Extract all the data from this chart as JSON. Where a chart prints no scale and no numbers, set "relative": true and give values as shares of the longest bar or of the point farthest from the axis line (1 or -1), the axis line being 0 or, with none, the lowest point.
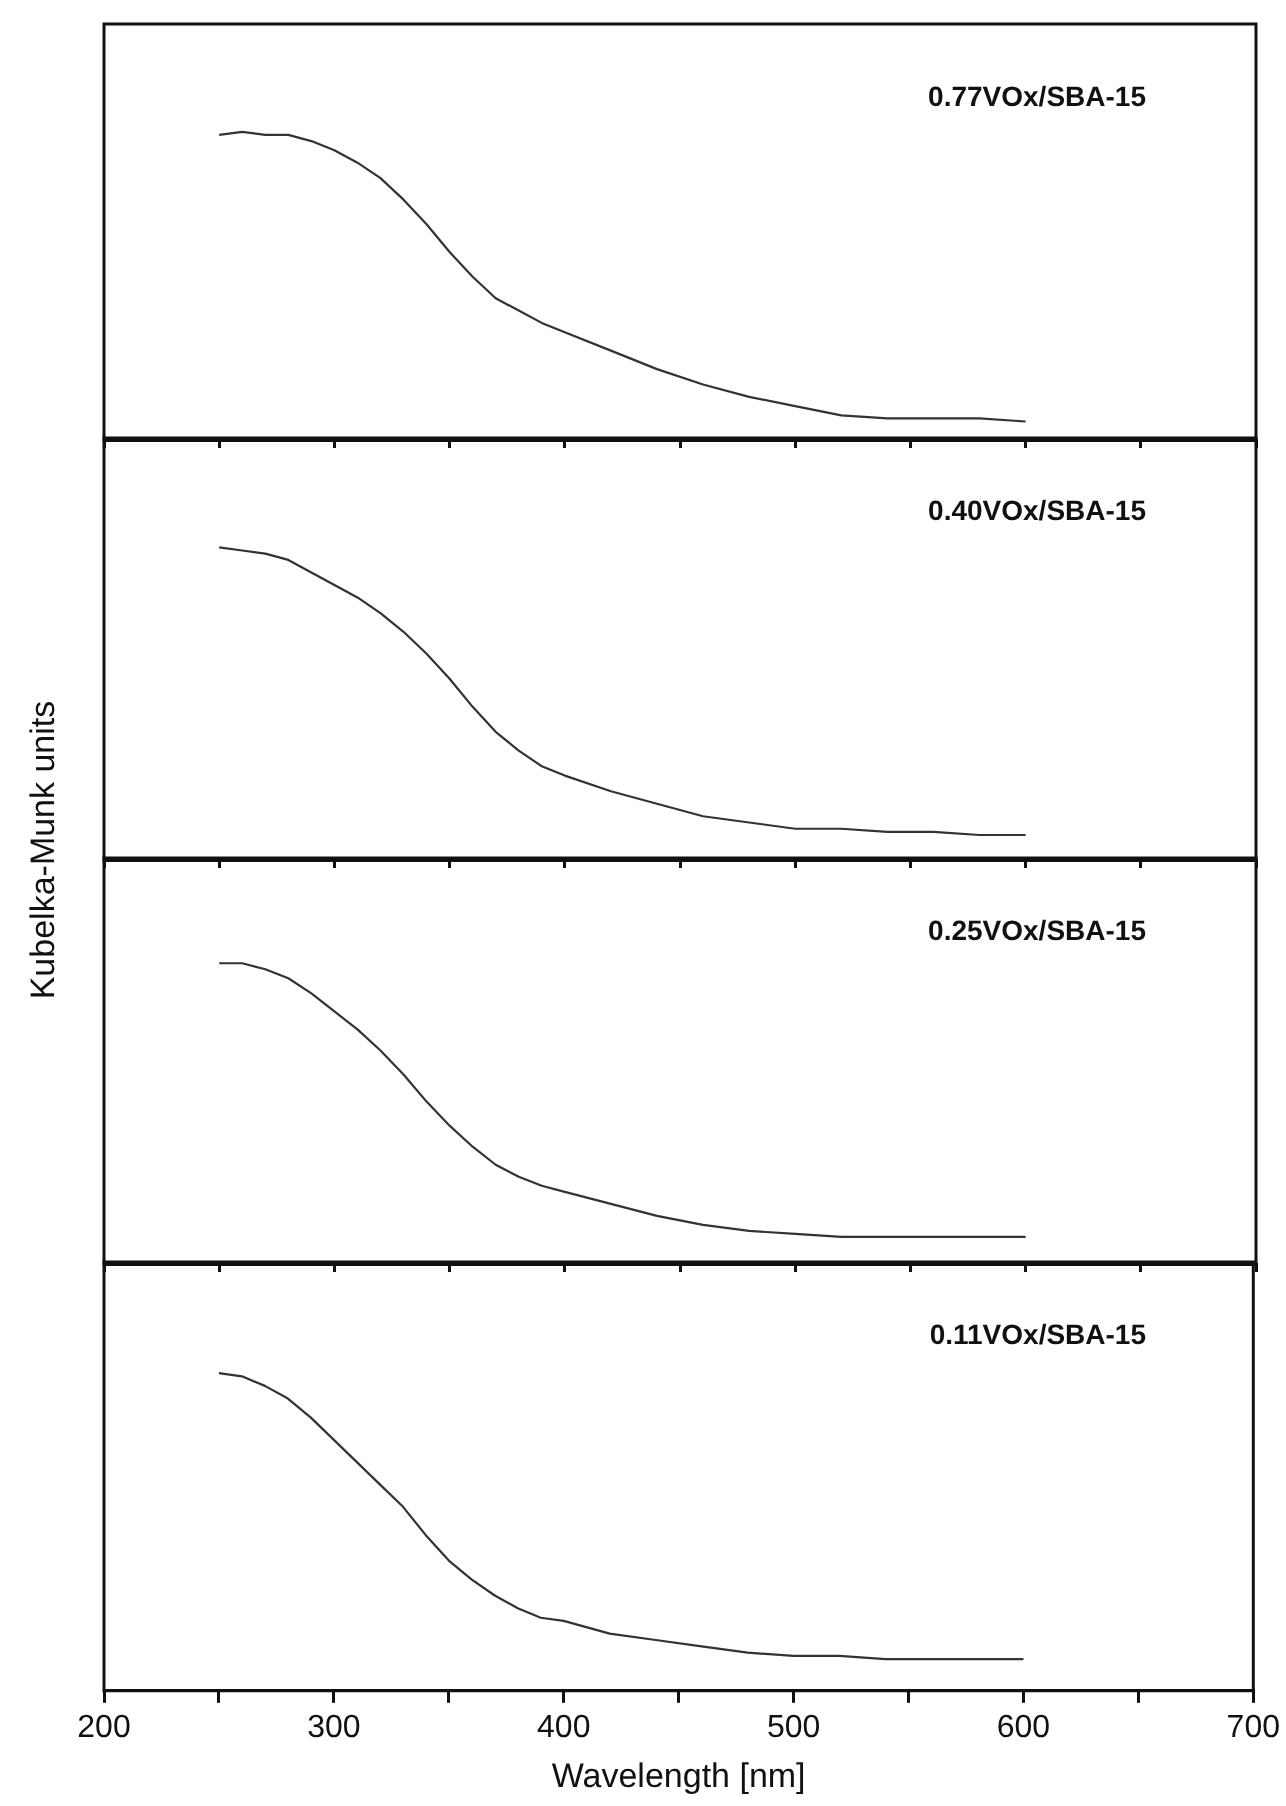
{
  "chart_data": [
    {
      "type": "line",
      "relative": true,
      "xlim": [
        200,
        700
      ],
      "tick_labels": false,
      "xticks": [
        200,
        {
          "value": 250,
          "label": null
        },
        300,
        {
          "value": 350,
          "label": null
        },
        400,
        {
          "value": 450,
          "label": null
        },
        500,
        {
          "value": 550,
          "label": null
        },
        600,
        {
          "value": 650,
          "label": null
        },
        700
      ],
      "series": [
        {
          "name": "0.77VOx/SBA-15",
          "color": "#333333",
          "x": [
            250,
            260,
            270,
            280,
            290,
            300,
            310,
            320,
            330,
            340,
            350,
            360,
            370,
            380,
            390,
            400,
            420,
            440,
            460,
            480,
            500,
            520,
            540,
            560,
            580,
            600
          ],
          "values": [
            0.99,
            1.0,
            0.99,
            0.99,
            0.97,
            0.94,
            0.9,
            0.85,
            0.78,
            0.7,
            0.61,
            0.53,
            0.46,
            0.42,
            0.38,
            0.35,
            0.29,
            0.23,
            0.18,
            0.14,
            0.11,
            0.08,
            0.07,
            0.07,
            0.07,
            0.06
          ]
        }
      ]
    },
    {
      "type": "line",
      "relative": true,
      "xlim": [
        200,
        700
      ],
      "tick_labels": false,
      "ylabel": "Kubelka-Munk units",
      "xticks": [
        200,
        {
          "value": 250,
          "label": null
        },
        300,
        {
          "value": 350,
          "label": null
        },
        400,
        {
          "value": 450,
          "label": null
        },
        500,
        {
          "value": 550,
          "label": null
        },
        600,
        {
          "value": 650,
          "label": null
        },
        700
      ],
      "series": [
        {
          "name": "0.40VOx/SBA-15",
          "color": "#333333",
          "x": [
            250,
            260,
            270,
            280,
            290,
            300,
            310,
            320,
            330,
            340,
            350,
            360,
            370,
            380,
            390,
            400,
            420,
            440,
            460,
            480,
            500,
            520,
            540,
            560,
            580,
            600
          ],
          "values": [
            1.0,
            0.99,
            0.98,
            0.96,
            0.92,
            0.88,
            0.84,
            0.79,
            0.73,
            0.66,
            0.58,
            0.49,
            0.41,
            0.35,
            0.3,
            0.27,
            0.22,
            0.18,
            0.14,
            0.12,
            0.1,
            0.1,
            0.09,
            0.09,
            0.08,
            0.08
          ]
        }
      ]
    },
    {
      "type": "line",
      "relative": true,
      "xlim": [
        200,
        700
      ],
      "tick_labels": false,
      "xticks": [
        200,
        {
          "value": 250,
          "label": null
        },
        300,
        {
          "value": 350,
          "label": null
        },
        400,
        {
          "value": 450,
          "label": null
        },
        500,
        {
          "value": 550,
          "label": null
        },
        600,
        {
          "value": 650,
          "label": null
        },
        700
      ],
      "series": [
        {
          "name": "0.25VOx/SBA-15",
          "color": "#333333",
          "x": [
            250,
            260,
            270,
            280,
            290,
            300,
            310,
            320,
            330,
            340,
            350,
            360,
            370,
            380,
            390,
            400,
            420,
            440,
            460,
            480,
            500,
            520,
            540,
            560,
            580,
            600
          ],
          "values": [
            1.0,
            1.0,
            0.98,
            0.95,
            0.9,
            0.84,
            0.78,
            0.71,
            0.63,
            0.54,
            0.46,
            0.39,
            0.33,
            0.29,
            0.26,
            0.24,
            0.2,
            0.16,
            0.13,
            0.11,
            0.1,
            0.09,
            0.09,
            0.09,
            0.09,
            0.09
          ]
        }
      ]
    },
    {
      "type": "line",
      "relative": true,
      "xlabel": "Wavelength [nm]",
      "xlim": [
        200,
        700
      ],
      "tick_labels": "x",
      "xticks": [
        200,
        {
          "value": 250,
          "label": null
        },
        300,
        {
          "value": 350,
          "label": null
        },
        400,
        {
          "value": 450,
          "label": null
        },
        500,
        {
          "value": 550,
          "label": null
        },
        600,
        {
          "value": 650,
          "label": null
        },
        700
      ],
      "series": [
        {
          "name": "0.11VOx/SBA-15",
          "color": "#333333",
          "x": [
            250,
            260,
            270,
            280,
            290,
            300,
            310,
            320,
            330,
            340,
            350,
            360,
            370,
            380,
            390,
            400,
            420,
            440,
            460,
            480,
            500,
            520,
            540,
            560,
            580,
            600
          ],
          "values": [
            1.0,
            0.99,
            0.96,
            0.92,
            0.86,
            0.79,
            0.72,
            0.65,
            0.58,
            0.49,
            0.41,
            0.35,
            0.3,
            0.26,
            0.23,
            0.22,
            0.18,
            0.16,
            0.14,
            0.12,
            0.11,
            0.11,
            0.1,
            0.1,
            0.1,
            0.1
          ]
        }
      ]
    }
  ]
}
